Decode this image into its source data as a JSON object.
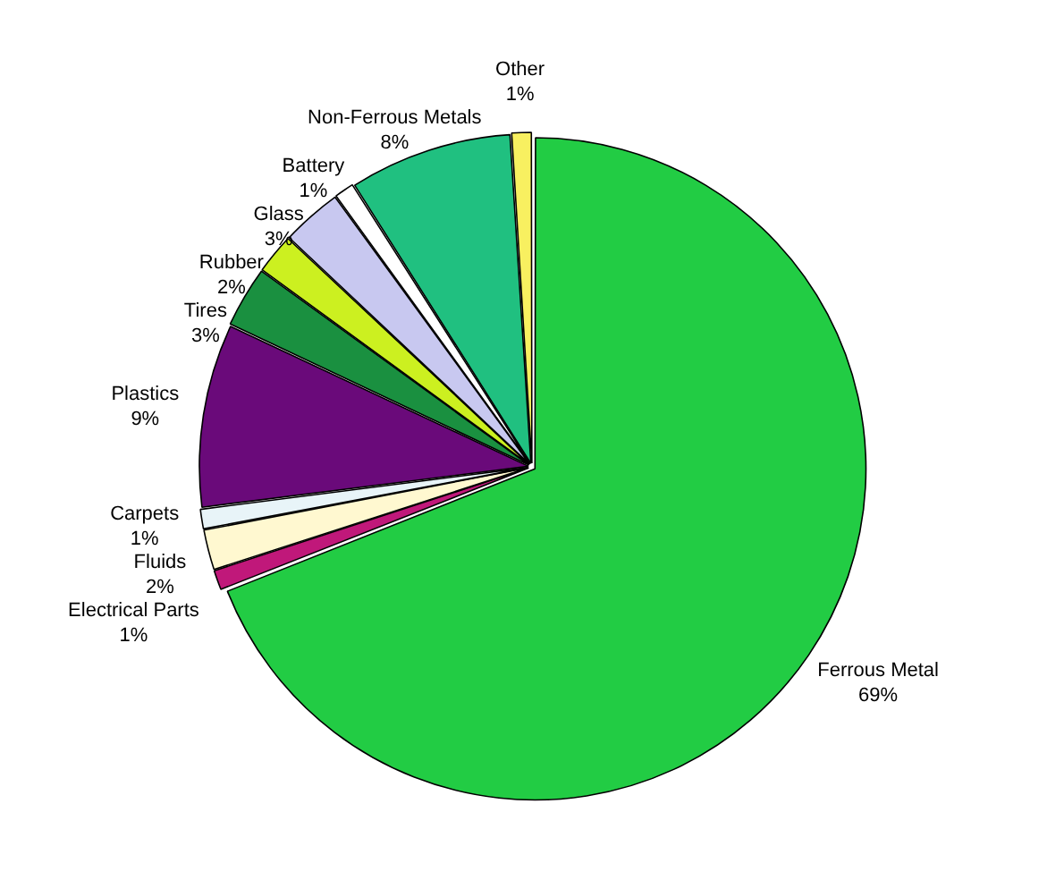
{
  "chart_data": {
    "type": "pie",
    "categories": [
      "Ferrous Metal",
      "Electrical Parts",
      "Fluids",
      "Carpets",
      "Plastics",
      "Tires",
      "Rubber",
      "Glass",
      "Battery",
      "Non-Ferrous Metals",
      "Other"
    ],
    "values": [
      69,
      1,
      2,
      1,
      9,
      3,
      2,
      3,
      1,
      8,
      1
    ],
    "value_labels": [
      "69%",
      "1%",
      "2%",
      "1%",
      "9%",
      "3%",
      "2%",
      "3%",
      "1%",
      "8%",
      "1%"
    ],
    "colors": [
      "#22cc44",
      "#c0187a",
      "#fff8d0",
      "#e8f4f8",
      "#6a0a7a",
      "#1a9040",
      "#ccf020",
      "#c8c8f0",
      "#ffffff",
      "#20c080",
      "#f8f060"
    ],
    "legend": false
  }
}
